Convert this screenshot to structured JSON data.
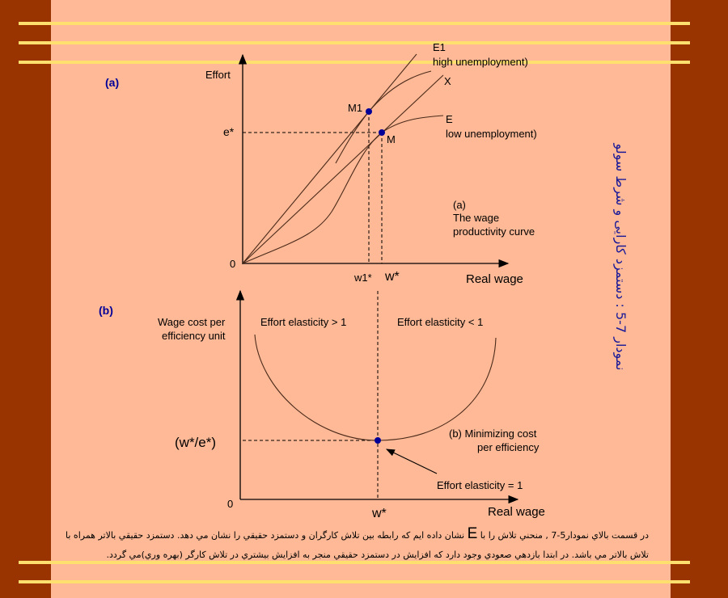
{
  "slide_title": "نمودار 7-5 : دستمزد کارایی و شرط سولو",
  "colors": {
    "background": "#ffb996",
    "side_bars": "#993300",
    "rules": "#ffdf6e",
    "points": "#000099",
    "title": "#1a1a99"
  },
  "panel_a": {
    "tag": "(a)",
    "y_label": "Effort",
    "x_label": "Real wage",
    "origin": "0",
    "e_star": "e*",
    "w1_star": "w1*",
    "w_star": "w*",
    "curve_e1_name": "E1",
    "curve_e1_note": "high unemployment)",
    "line_x_name": "X",
    "curve_e_name": "E",
    "curve_e_note": "low  unemployment)",
    "point_m1": "M1",
    "point_m": "M",
    "caption_tag": "(a)",
    "caption_line1": "The wage",
    "caption_line2": "productivity curve"
  },
  "panel_b": {
    "tag": "(b)",
    "y_label_line1": "Wage cost per",
    "y_label_line2": "efficiency unit",
    "x_label": "Real wage",
    "origin": "0",
    "w_star": "w*",
    "min_value": "(w*/e*)",
    "left_region": "Effort elasticity  > 1",
    "right_region": "Effort elasticity  < 1",
    "caption_line1": "(b) Minimizing  cost",
    "caption_line2": "per efficiency",
    "min_note": "Effort elasticity  = 1"
  },
  "paragraph": {
    "before_e": "در قسمت بالاي نمودار5-7 , منحني تلاش را با ",
    "e": "E",
    "after_e": " نشان داده ايم که رابطه بين تلاش کارگران و دستمزد حقيقي را نشان مي دهد. دستمزد حقيقي بالاتر همراه با تلاش بالاتر مي باشد. در ابتدا بازدهي صعودي وجود دارد که افزايش در دستمزد حقيقي منجر به افزايش بيشتري در تلاش کارگر (بهره وري)مي گردد."
  }
}
